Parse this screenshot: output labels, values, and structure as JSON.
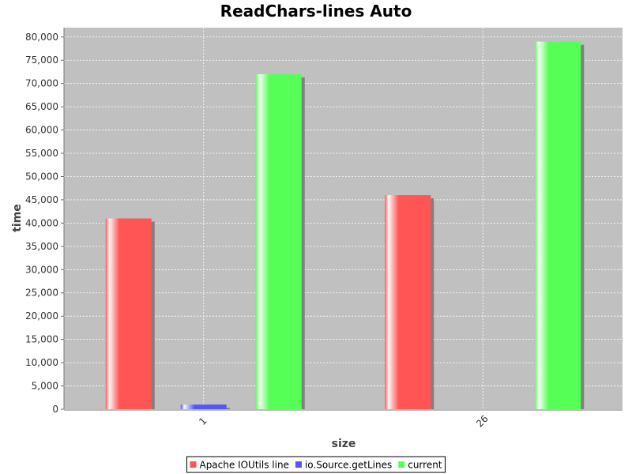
{
  "chart_data": {
    "type": "bar",
    "title": "ReadChars-lines Auto",
    "xlabel": "size",
    "ylabel": "time",
    "categories": [
      "1",
      "26"
    ],
    "series": [
      {
        "name": "Apache IOUtils line",
        "values": [
          41000,
          46000
        ],
        "color": "#ff5555"
      },
      {
        "name": "io.Source.getLines",
        "values": [
          1000,
          0
        ],
        "color": "#5555ff"
      },
      {
        "name": "current",
        "values": [
          72000,
          79000
        ],
        "color": "#55ff55"
      }
    ],
    "ylim": [
      0,
      82000
    ],
    "yticks": [
      0,
      5000,
      10000,
      15000,
      20000,
      25000,
      30000,
      35000,
      40000,
      45000,
      50000,
      55000,
      60000,
      65000,
      70000,
      75000,
      80000
    ],
    "ytick_labels": [
      "0",
      "5,000",
      "10,000",
      "15,000",
      "20,000",
      "25,000",
      "30,000",
      "35,000",
      "40,000",
      "45,000",
      "50,000",
      "55,000",
      "60,000",
      "65,000",
      "70,000",
      "75,000",
      "80,000"
    ],
    "grid": true,
    "plot_background": "#c0c0c0",
    "legend_placement": "bottom"
  }
}
